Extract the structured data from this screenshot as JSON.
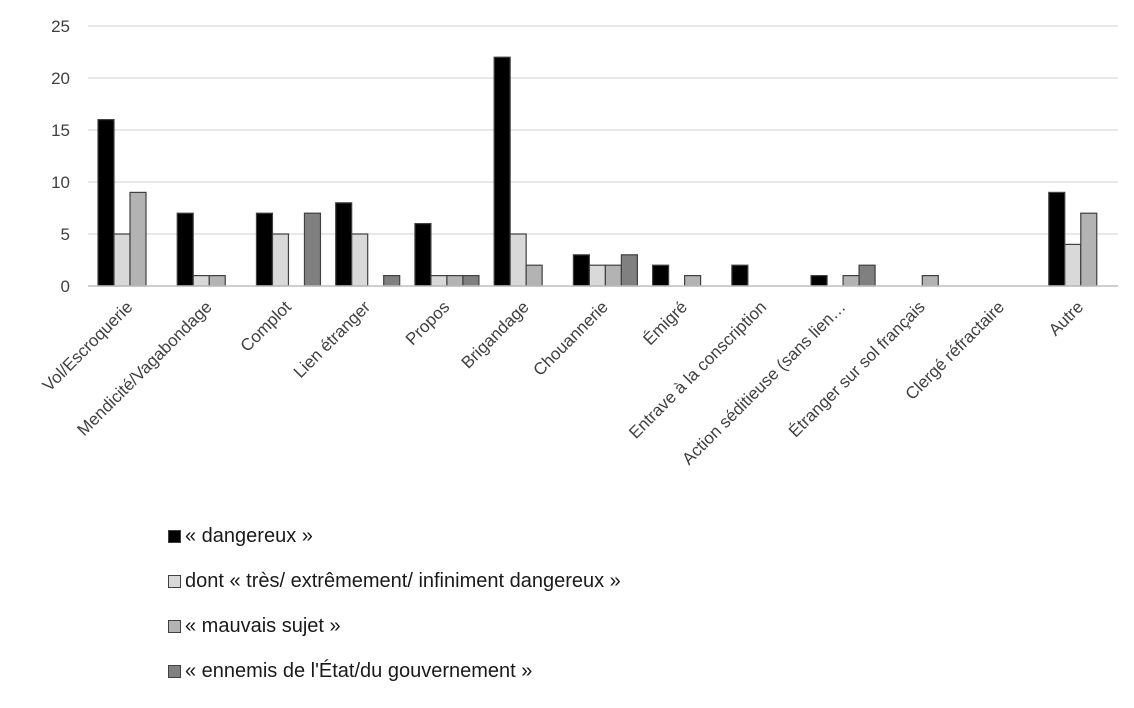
{
  "chart_data": {
    "type": "bar",
    "categories": [
      "Vol/Escroquerie",
      "Mendicité/Vagabondage",
      "Complot",
      "Lien étranger",
      "Propos",
      "Brigandage",
      "Chouannerie",
      "Émigré",
      "Entrave à la conscription",
      "Action séditieuse (sans lien…",
      "Étranger sur sol français",
      "Clergé réfractaire",
      "Autre"
    ],
    "series": [
      {
        "name": "« dangereux »",
        "color": "#000000",
        "values": [
          16,
          7,
          7,
          8,
          6,
          22,
          3,
          2,
          2,
          1,
          0,
          0,
          9
        ]
      },
      {
        "name": "dont « très/ extrêmement/ infiniment dangereux »",
        "color": "#d9d9d9",
        "values": [
          5,
          1,
          5,
          5,
          1,
          5,
          2,
          0,
          0,
          0,
          0,
          0,
          4
        ]
      },
      {
        "name": "« mauvais sujet »",
        "color": "#b3b3b3",
        "values": [
          9,
          1,
          0,
          0,
          1,
          2,
          2,
          1,
          0,
          1,
          1,
          0,
          7
        ]
      },
      {
        "name": "« ennemis de l'État/du gouvernement »",
        "color": "#808080",
        "values": [
          0,
          0,
          7,
          1,
          1,
          0,
          3,
          0,
          0,
          2,
          0,
          0,
          0
        ]
      }
    ],
    "yticks": [
      "0",
      "5",
      "10",
      "15",
      "20",
      "25"
    ],
    "ylim": [
      0,
      25
    ],
    "grid": true,
    "legend_position": "bottom"
  }
}
